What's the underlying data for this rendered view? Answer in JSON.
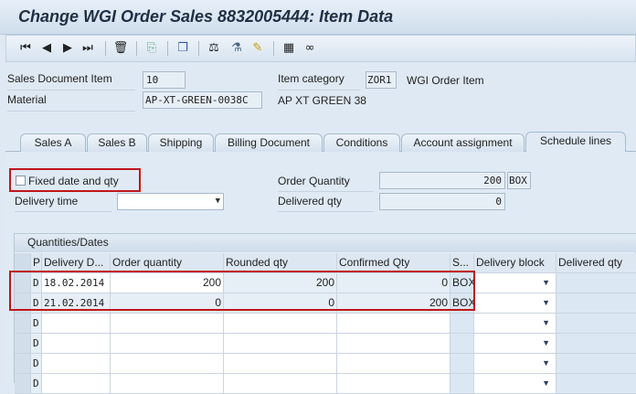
{
  "title": "Change WGI Order Sales 8832005444: Item Data",
  "toolbar": [
    "first-page-icon",
    "previous-page-icon",
    "next-page-icon",
    "last-page-icon",
    "delete-icon",
    "copy-icon",
    "display-document-icon",
    "status-icon",
    "configuration-icon",
    "edit-notes-icon",
    "calculator-icon",
    "glasses-icon"
  ],
  "header": {
    "item_label": "Sales Document Item",
    "item_value": "10",
    "category_label": "Item category",
    "category_value": "ZOR1",
    "category_text": "WGI Order Item",
    "material_label": "Material",
    "material_value": "AP-XT-GREEN-0038C",
    "material_text": "AP XT GREEN 38"
  },
  "tabs": [
    {
      "label": "Sales A"
    },
    {
      "label": "Sales B"
    },
    {
      "label": "Shipping"
    },
    {
      "label": "Billing Document"
    },
    {
      "label": "Conditions"
    },
    {
      "label": "Account assignment"
    },
    {
      "label": "Schedule lines",
      "active": true
    }
  ],
  "schedule": {
    "fixed_label": "Fixed date and qty",
    "fixed_checked": false,
    "delivery_time_label": "Delivery time",
    "delivery_time_value": "",
    "order_qty_label": "Order Quantity",
    "order_qty_value": "200",
    "order_qty_unit": "BOX",
    "delivered_qty_label": "Delivered qty",
    "delivered_qty_value": "0"
  },
  "table": {
    "title": "Quantities/Dates",
    "columns": [
      "P",
      "Delivery D...",
      "Order quantity",
      "Rounded qty",
      "Confirmed Qty",
      "S...",
      "Delivery block",
      "Delivered qty"
    ],
    "rows": [
      [
        "D",
        "18.02.2014",
        "200",
        "200",
        "0",
        "BOX",
        "",
        ""
      ],
      [
        "D",
        "21.02.2014",
        "0",
        "0",
        "200",
        "BOX",
        "",
        ""
      ],
      [
        "D",
        "",
        "",
        "",
        "",
        "",
        "",
        ""
      ],
      [
        "D",
        "",
        "",
        "",
        "",
        "",
        "",
        ""
      ],
      [
        "D",
        "",
        "",
        "",
        "",
        "",
        "",
        ""
      ],
      [
        "D",
        "",
        "",
        "",
        "",
        "",
        "",
        ""
      ]
    ]
  },
  "colors": {
    "highlight": "#c0161b",
    "background": "#dfeaf4"
  }
}
